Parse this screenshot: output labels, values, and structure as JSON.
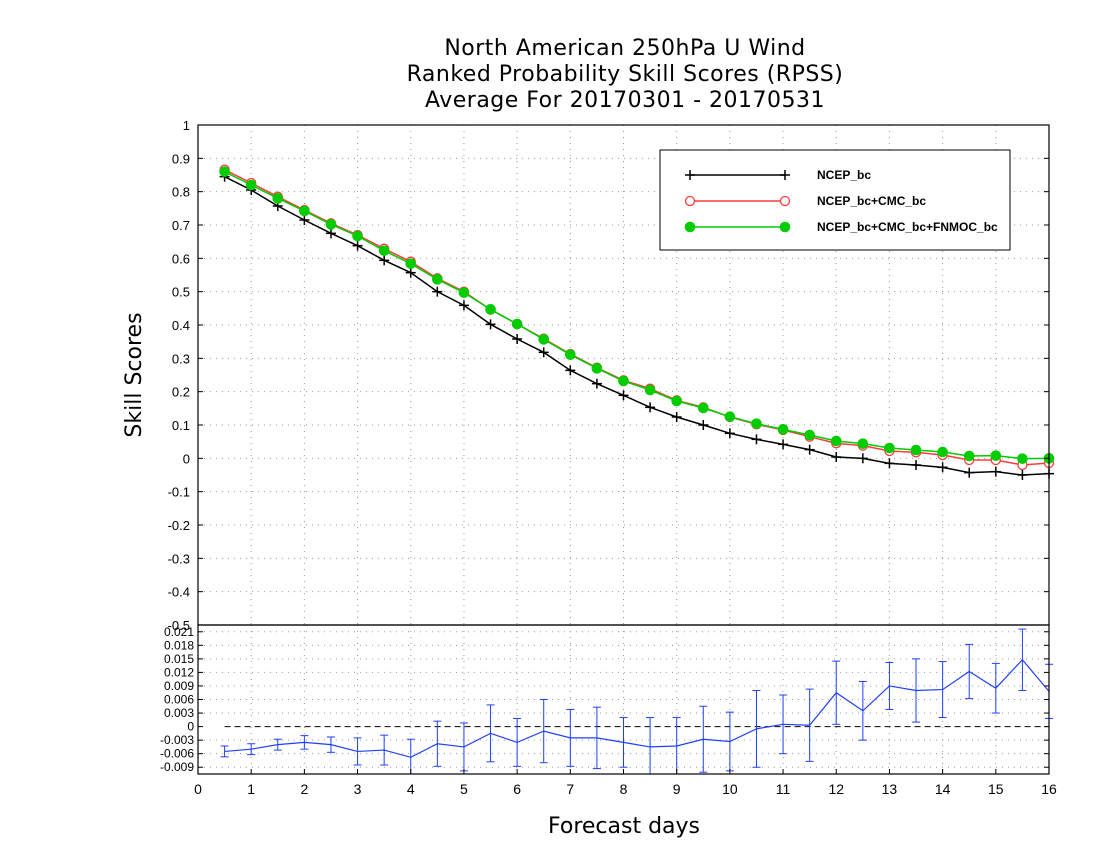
{
  "title_lines": [
    "North American 250hPa U Wind",
    "Ranked Probability Skill Scores (RPSS)",
    "Average For 20170301 - 20170531"
  ],
  "chart_data": [
    {
      "type": "line",
      "panel": "main",
      "title": "North American 250hPa U Wind / Ranked Probability Skill Scores (RPSS) / Average For 20170301 - 20170531",
      "ylabel": "Skill Scores",
      "xlabel": "Forecast days",
      "xlim": [
        0,
        16
      ],
      "ylim": [
        -0.5,
        1
      ],
      "yticks": [
        1,
        0.9,
        0.8,
        0.7,
        0.6,
        0.5,
        0.4,
        0.3,
        0.2,
        0.1,
        0,
        -0.1,
        -0.2,
        -0.3,
        -0.4,
        -0.5
      ],
      "ytick_labels": [
        "1",
        "0.9",
        "0.8",
        "0.7",
        "0.6",
        "0.5",
        "0.4",
        "0.3",
        "0.2",
        "0.1",
        "0",
        "-0.1",
        "-0.2",
        "-0.3",
        "-0.4",
        "-0.5"
      ],
      "grid": true,
      "legend_position": "top-right",
      "x": [
        0.5,
        1,
        1.5,
        2,
        2.5,
        3,
        3.5,
        4,
        4.5,
        5,
        5.5,
        6,
        6.5,
        7,
        7.5,
        8,
        8.5,
        9,
        9.5,
        10,
        10.5,
        11,
        11.5,
        12,
        12.5,
        13,
        13.5,
        14,
        14.5,
        15,
        15.5,
        16
      ],
      "series": [
        {
          "name": "NCEP_bc",
          "color": "#000000",
          "marker": "plus",
          "values": [
            0.845,
            0.805,
            0.757,
            0.715,
            0.675,
            0.638,
            0.594,
            0.557,
            0.5,
            0.459,
            0.402,
            0.358,
            0.318,
            0.264,
            0.224,
            0.189,
            0.153,
            0.124,
            0.1,
            0.075,
            0.057,
            0.042,
            0.026,
            0.004,
            0.0,
            -0.015,
            -0.02,
            -0.027,
            -0.043,
            -0.04,
            -0.05,
            -0.046
          ]
        },
        {
          "name": "NCEP_bc+CMC_bc",
          "color": "#ff3b3b",
          "marker": "open-circle",
          "values": [
            0.866,
            0.826,
            0.785,
            0.745,
            0.705,
            0.67,
            0.629,
            0.59,
            0.54,
            0.5,
            0.446,
            0.403,
            0.359,
            0.313,
            0.272,
            0.234,
            0.209,
            0.174,
            0.153,
            0.124,
            0.102,
            0.085,
            0.065,
            0.045,
            0.038,
            0.022,
            0.018,
            0.01,
            -0.005,
            -0.005,
            -0.02,
            -0.014
          ]
        },
        {
          "name": "NCEP_bc+CMC_bc+FNMOC_bc",
          "color": "#00cc00",
          "marker": "filled-circle",
          "values": [
            0.86,
            0.82,
            0.78,
            0.742,
            0.702,
            0.667,
            0.623,
            0.584,
            0.537,
            0.497,
            0.447,
            0.403,
            0.357,
            0.311,
            0.27,
            0.232,
            0.205,
            0.172,
            0.151,
            0.125,
            0.104,
            0.087,
            0.07,
            0.052,
            0.044,
            0.031,
            0.025,
            0.019,
            0.007,
            0.008,
            -0.001,
            0.0
          ]
        }
      ]
    },
    {
      "type": "line",
      "panel": "difference",
      "xlabel": "Forecast days",
      "xlim": [
        0,
        16
      ],
      "xticks": [
        "0",
        "1",
        "2",
        "3",
        "4",
        "5",
        "6",
        "7",
        "8",
        "9",
        "10",
        "11",
        "12",
        "13",
        "14",
        "15",
        "16"
      ],
      "ylim": [
        -0.0105,
        0.0225
      ],
      "yticks": [
        0.021,
        0.018,
        0.015,
        0.012,
        0.009,
        0.006,
        0.003,
        0,
        -0.003,
        -0.006,
        -0.009
      ],
      "ytick_labels": [
        "0.021",
        "0.018",
        "0.015",
        "0.012",
        "0.009",
        "0.006",
        "0.003",
        "0",
        "-0.003",
        "-0.006",
        "-0.009"
      ],
      "grid": true,
      "zero_line": true,
      "series": [
        {
          "color": "#1f3fff",
          "x": [
            0.5,
            1,
            1.5,
            2,
            2.5,
            3,
            3.5,
            4,
            4.5,
            5,
            5.5,
            6,
            6.5,
            7,
            7.5,
            8,
            8.5,
            9,
            9.5,
            10,
            10.5,
            11,
            11.5,
            12,
            12.5,
            13,
            13.5,
            14,
            14.5,
            15,
            15.5,
            16
          ],
          "values": [
            -0.0055,
            -0.005,
            -0.004,
            -0.0035,
            -0.004,
            -0.0055,
            -0.0052,
            -0.0068,
            -0.0038,
            -0.0045,
            -0.0015,
            -0.0035,
            -0.001,
            -0.0025,
            -0.0025,
            -0.0035,
            -0.0045,
            -0.0043,
            -0.0028,
            -0.0033,
            -0.0005,
            0.0005,
            0.0003,
            0.0075,
            0.0035,
            0.009,
            0.008,
            0.0082,
            0.0122,
            0.0085,
            0.0148,
            0.0078
          ],
          "error": [
            0.0012,
            0.0012,
            0.0012,
            0.0015,
            0.0017,
            0.003,
            0.0033,
            0.004,
            0.005,
            0.0053,
            0.0063,
            0.0053,
            0.007,
            0.0063,
            0.0068,
            0.0055,
            0.0065,
            0.0063,
            0.0073,
            0.0065,
            0.0085,
            0.0065,
            0.008,
            0.007,
            0.0065,
            0.0052,
            0.007,
            0.0062,
            0.006,
            0.0055,
            0.0068,
            0.006
          ]
        }
      ]
    }
  ]
}
